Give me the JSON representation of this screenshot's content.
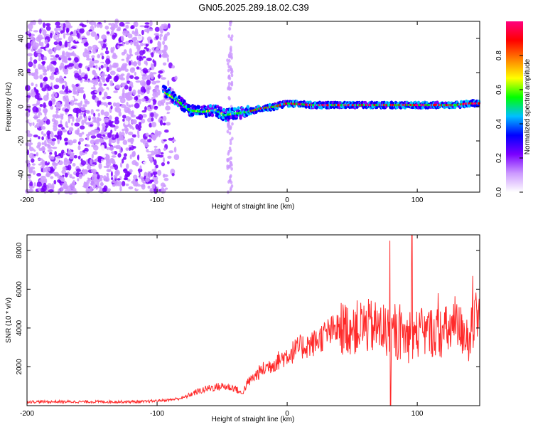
{
  "title": "GN05.2025.289.18.02.C39",
  "chart_data": [
    {
      "type": "heatmap",
      "name": "spectrogram",
      "xlabel": "Height of straight line (km)",
      "ylabel": "Frequency (Hz)",
      "xlim": [
        -200,
        148
      ],
      "ylim": [
        -50,
        50
      ],
      "xticks": [
        -200,
        -100,
        0,
        100
      ],
      "yticks": [
        -40,
        -20,
        0,
        20,
        40
      ],
      "colorbar": {
        "label": "Normalized spectral amplitude",
        "ticks": [
          0.0,
          0.2,
          0.4,
          0.6,
          0.8
        ],
        "range": [
          0,
          1
        ],
        "colors": [
          "#ffffff",
          "#cc99ff",
          "#7a00ff",
          "#0000ff",
          "#00bfff",
          "#00ff00",
          "#ffff00",
          "#ff8000",
          "#ff0000",
          "#ff007f"
        ]
      },
      "ridge": {
        "x": [
          -95,
          -85,
          -75,
          -65,
          -55,
          -48,
          -40,
          -30,
          -20,
          -10,
          0,
          20,
          40,
          60,
          80,
          100,
          120,
          130,
          140,
          148
        ],
        "y": [
          9,
          4,
          -2,
          -3,
          -2,
          -5,
          -4,
          -3,
          -1,
          0,
          2,
          1,
          1,
          1,
          1,
          1,
          1,
          1,
          2,
          2
        ]
      }
    },
    {
      "type": "line",
      "name": "snr",
      "xlabel": "Height of straight line (km)",
      "ylabel": "SNR (10 * v/v)",
      "xlim": [
        -200,
        148
      ],
      "ylim": [
        0,
        8800
      ],
      "xticks": [
        -200,
        -100,
        0,
        100
      ],
      "yticks": [
        2000,
        4000,
        6000,
        8000
      ],
      "color": "#ff2a2a",
      "envelope": {
        "x": [
          -200,
          -150,
          -110,
          -90,
          -80,
          -70,
          -60,
          -50,
          -40,
          -35,
          -30,
          -20,
          -10,
          0,
          10,
          20,
          30,
          40,
          50,
          60,
          70,
          80,
          90,
          100,
          110,
          120,
          130,
          140,
          148
        ],
        "y": [
          200,
          200,
          200,
          300,
          400,
          700,
          900,
          1000,
          900,
          600,
          1200,
          1800,
          2200,
          2600,
          3000,
          3200,
          3700,
          4000,
          4000,
          4100,
          4000,
          3700,
          3600,
          3700,
          3800,
          3800,
          4000,
          3700,
          4400
        ]
      }
    }
  ]
}
